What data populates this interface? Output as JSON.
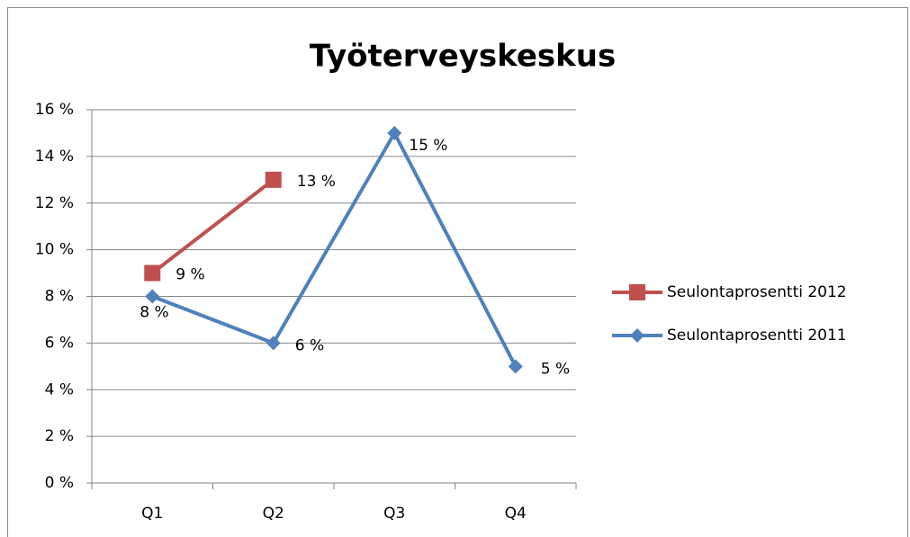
{
  "chart_data": {
    "type": "line",
    "title": "Työterveyskeskus",
    "categories": [
      "Q1",
      "Q2",
      "Q3",
      "Q4"
    ],
    "series": [
      {
        "name": "Seulontaprosentti 2012",
        "color": "#c0504d",
        "marker": "square",
        "values": [
          9,
          13,
          null,
          null
        ],
        "value_labels": [
          "9 %",
          "13 %",
          null,
          null
        ]
      },
      {
        "name": "Seulontaprosentti 2011",
        "color": "#4f81bd",
        "marker": "diamond",
        "values": [
          8,
          6,
          15,
          5
        ],
        "value_labels": [
          "8 %",
          "6 %",
          "15 %",
          "5 %"
        ]
      }
    ],
    "ylim": [
      0,
      16
    ],
    "yticks": [
      {
        "value": 0,
        "label": "0 %"
      },
      {
        "value": 2,
        "label": "2 %"
      },
      {
        "value": 4,
        "label": "4 %"
      },
      {
        "value": 6,
        "label": "6 %"
      },
      {
        "value": 8,
        "label": "8 %"
      },
      {
        "value": 10,
        "label": "10 %"
      },
      {
        "value": 12,
        "label": "12 %"
      },
      {
        "value": 14,
        "label": "14 %"
      },
      {
        "value": 16,
        "label": "16 %"
      }
    ],
    "grid": true,
    "legend": "right"
  }
}
